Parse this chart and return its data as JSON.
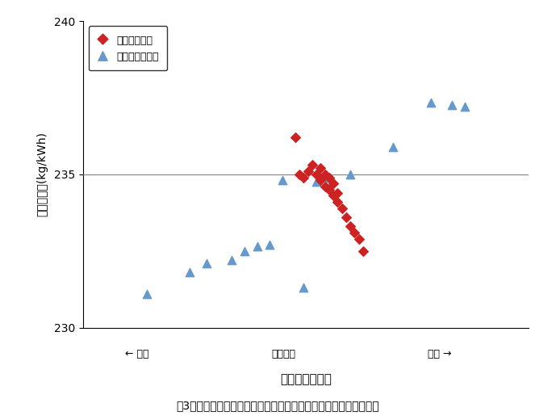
{
  "title": "図3　大気条件を一定とした試験結果（燃料）消費率）との比較例",
  "ylabel": "燃料消費率(kg/kWh)",
  "xlabel": "大気条件の違い",
  "xaxis_label_left": "← 高い",
  "xaxis_label_center": "空気密度",
  "xaxis_label_right": "低い →",
  "ylim": [
    230,
    240
  ],
  "yticks": [
    230,
    235,
    240
  ],
  "hline_y": 235,
  "red_x": [
    5.0,
    5.1,
    5.2,
    5.3,
    5.4,
    5.5,
    5.6,
    5.6,
    5.7,
    5.7,
    5.8,
    5.8,
    5.9,
    5.9,
    6.0,
    6.0,
    6.1,
    6.2,
    6.3,
    6.4,
    6.5,
    6.6
  ],
  "red_y": [
    236.2,
    235.0,
    234.9,
    235.1,
    235.3,
    235.0,
    234.8,
    235.2,
    234.6,
    235.0,
    234.5,
    234.9,
    234.3,
    234.7,
    234.1,
    234.4,
    233.9,
    233.6,
    233.3,
    233.1,
    232.9,
    232.5
  ],
  "blue_x": [
    1.5,
    2.5,
    2.9,
    3.5,
    3.8,
    4.1,
    4.4,
    4.7,
    5.2,
    5.5,
    5.8,
    6.3,
    7.3,
    8.2,
    8.7,
    9.0
  ],
  "blue_y": [
    231.1,
    231.8,
    232.1,
    232.2,
    232.5,
    232.65,
    232.7,
    234.8,
    231.3,
    234.75,
    234.9,
    235.0,
    235.9,
    237.35,
    237.25,
    237.2
  ],
  "red_color": "#CC2222",
  "blue_color": "#6699CC",
  "legend1": "大気条件一定",
  "legend2": "従来の試験手法",
  "bg_color": "#ffffff",
  "fig_width": 6.89,
  "fig_height": 5.2,
  "dpi": 100
}
